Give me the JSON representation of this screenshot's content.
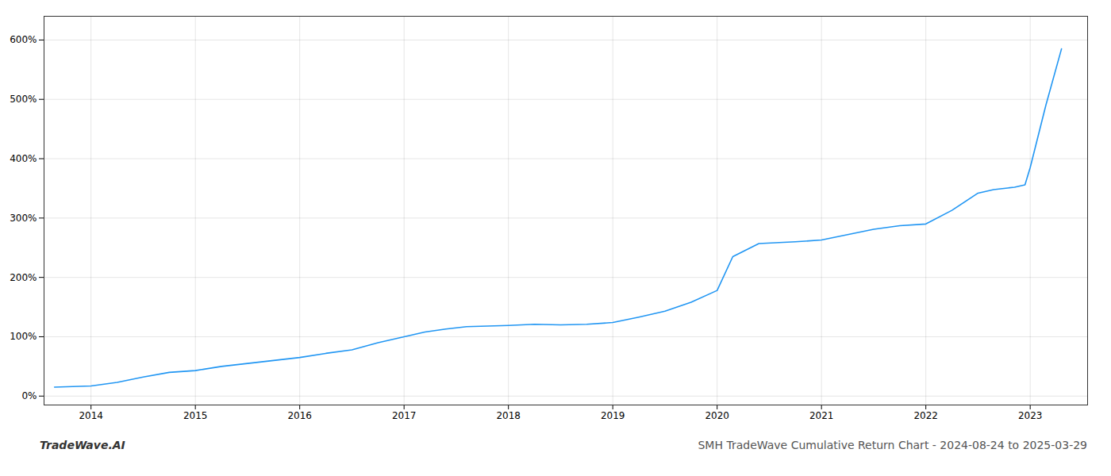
{
  "chart_data": {
    "type": "line",
    "title": "SMH TradeWave Cumulative Return Chart - 2024-08-24 to 2025-03-29",
    "annotations": [
      "TradeWave.AI"
    ],
    "color": "#2196F3",
    "grid": true,
    "x": [
      2013.65,
      2014.0,
      2014.25,
      2014.5,
      2014.75,
      2015.0,
      2015.25,
      2015.5,
      2015.75,
      2016.0,
      2016.25,
      2016.5,
      2016.75,
      2017.0,
      2017.2,
      2017.4,
      2017.6,
      2017.8,
      2018.0,
      2018.25,
      2018.5,
      2018.75,
      2019.0,
      2019.25,
      2019.5,
      2019.75,
      2020.0,
      2020.15,
      2020.4,
      2020.75,
      2021.0,
      2021.25,
      2021.5,
      2021.75,
      2022.0,
      2022.25,
      2022.5,
      2022.65,
      2022.75,
      2022.85,
      2022.95,
      2023.0,
      2023.15,
      2023.3
    ],
    "values": [
      15,
      17,
      23,
      32,
      40,
      43,
      50,
      55,
      60,
      65,
      72,
      78,
      90,
      100,
      108,
      113,
      117,
      118,
      119,
      121,
      120,
      121,
      124,
      133,
      143,
      158,
      178,
      235,
      257,
      260,
      263,
      272,
      281,
      287,
      290,
      313,
      342,
      348,
      350,
      352,
      356,
      385,
      490,
      585
    ],
    "xlim": [
      2013.55,
      2023.55
    ],
    "xticks": [
      2014,
      2015,
      2016,
      2017,
      2018,
      2019,
      2020,
      2021,
      2022,
      2023
    ],
    "ylim": [
      -15,
      640
    ],
    "yticks": [
      {
        "value": 0,
        "label": "0%"
      },
      {
        "value": 100,
        "label": "100%"
      },
      {
        "value": 200,
        "label": "200%"
      },
      {
        "value": 300,
        "label": "300%"
      },
      {
        "value": 400,
        "label": "400%"
      },
      {
        "value": 500,
        "label": "500%"
      },
      {
        "value": 600,
        "label": "600%"
      }
    ]
  }
}
